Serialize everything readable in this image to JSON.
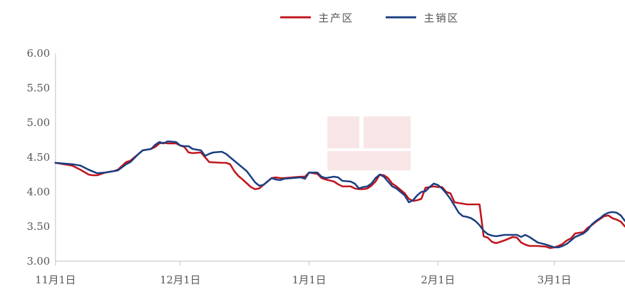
{
  "chart_data": {
    "type": "line",
    "title": "",
    "xlabel": "",
    "ylabel": "",
    "ylim": [
      3.0,
      6.0
    ],
    "y_ticks": [
      "3.00",
      "3.50",
      "4.00",
      "4.50",
      "5.00",
      "5.50",
      "6.00"
    ],
    "y_tick_values": [
      3.0,
      3.5,
      4.0,
      4.5,
      5.0,
      5.5,
      6.0
    ],
    "x_ticks": [
      "11月1日",
      "12月1日",
      "1月1日",
      "2月1日",
      "3月1日"
    ],
    "x_tick_days": [
      0,
      30,
      61,
      92,
      120
    ],
    "x_range_days": [
      0,
      137
    ],
    "x_day_origin_label": "11月1日",
    "grid": false,
    "legend_position": "top-center",
    "series": [
      {
        "name": "主产区",
        "color": "#c0141c",
        "x": [
          0,
          4,
          6,
          8,
          9,
          10,
          12,
          14,
          15,
          17,
          18,
          20,
          21,
          23,
          24,
          25,
          26,
          27,
          29,
          30,
          31,
          32,
          33,
          35,
          36,
          37,
          40,
          41,
          42,
          43,
          44,
          45,
          47,
          48,
          49,
          50,
          51,
          52,
          53,
          54,
          55,
          57,
          59,
          60,
          61,
          62,
          63,
          64,
          65,
          67,
          68,
          69,
          71,
          72,
          73,
          74,
          75,
          76,
          77,
          78,
          79,
          80,
          81,
          82,
          84,
          85,
          86,
          87,
          88,
          89,
          90,
          91,
          92,
          93,
          94,
          95,
          96,
          99,
          100,
          102,
          103,
          104,
          105,
          106,
          107,
          108,
          110,
          111,
          112,
          113,
          114,
          116,
          118,
          119,
          120,
          121,
          122,
          123,
          124,
          125,
          127,
          128,
          129,
          130,
          131,
          132,
          133,
          134,
          135,
          136,
          137
        ],
        "values": [
          4.42,
          4.38,
          4.32,
          4.25,
          4.24,
          4.24,
          4.28,
          4.3,
          4.32,
          4.43,
          4.45,
          4.55,
          4.6,
          4.62,
          4.65,
          4.7,
          4.71,
          4.7,
          4.7,
          4.67,
          4.65,
          4.57,
          4.56,
          4.57,
          4.5,
          4.43,
          4.42,
          4.42,
          4.4,
          4.3,
          4.23,
          4.18,
          4.07,
          4.04,
          4.05,
          4.1,
          4.15,
          4.2,
          4.21,
          4.2,
          4.2,
          4.21,
          4.22,
          4.22,
          4.28,
          4.27,
          4.26,
          4.2,
          4.18,
          4.15,
          4.11,
          4.08,
          4.08,
          4.05,
          4.04,
          4.04,
          4.05,
          4.09,
          4.15,
          4.25,
          4.24,
          4.2,
          4.12,
          4.08,
          3.98,
          3.9,
          3.87,
          3.88,
          3.9,
          4.06,
          4.07,
          4.08,
          4.07,
          4.07,
          4.0,
          3.98,
          3.85,
          3.82,
          3.82,
          3.82,
          3.36,
          3.34,
          3.28,
          3.26,
          3.28,
          3.3,
          3.35,
          3.34,
          3.27,
          3.24,
          3.22,
          3.22,
          3.21,
          3.19,
          3.2,
          3.22,
          3.25,
          3.3,
          3.33,
          3.4,
          3.42,
          3.48,
          3.52,
          3.57,
          3.61,
          3.65,
          3.66,
          3.62,
          3.6,
          3.57,
          3.5
        ]
      },
      {
        "name": "主销区",
        "color": "#1c3f82",
        "x": [
          0,
          4,
          6,
          8,
          10,
          12,
          14,
          15,
          17,
          18,
          20,
          21,
          23,
          24,
          25,
          26,
          27,
          29,
          30,
          31,
          32,
          33,
          35,
          36,
          37,
          38,
          40,
          41,
          42,
          43,
          44,
          45,
          46,
          47,
          48,
          49,
          50,
          51,
          52,
          53,
          54,
          55,
          57,
          59,
          60,
          61,
          62,
          63,
          64,
          65,
          67,
          68,
          69,
          71,
          72,
          73,
          74,
          75,
          76,
          77,
          78,
          79,
          80,
          81,
          82,
          84,
          85,
          86,
          87,
          88,
          89,
          90,
          91,
          92,
          93,
          94,
          95,
          96,
          97,
          98,
          99,
          100,
          101,
          102,
          103,
          104,
          105,
          106,
          108,
          110,
          111,
          112,
          113,
          114,
          116,
          118,
          119,
          120,
          121,
          122,
          123,
          124,
          125,
          127,
          128,
          129,
          130,
          131,
          132,
          133,
          134,
          135,
          136,
          137
        ],
        "values": [
          4.42,
          4.4,
          4.38,
          4.32,
          4.27,
          4.28,
          4.3,
          4.31,
          4.4,
          4.43,
          4.55,
          4.6,
          4.62,
          4.68,
          4.72,
          4.7,
          4.73,
          4.72,
          4.67,
          4.66,
          4.66,
          4.62,
          4.6,
          4.52,
          4.55,
          4.57,
          4.58,
          4.55,
          4.5,
          4.45,
          4.4,
          4.35,
          4.3,
          4.22,
          4.14,
          4.09,
          4.1,
          4.15,
          4.2,
          4.18,
          4.17,
          4.19,
          4.2,
          4.21,
          4.19,
          4.28,
          4.28,
          4.28,
          4.22,
          4.2,
          4.22,
          4.21,
          4.16,
          4.15,
          4.12,
          4.05,
          4.07,
          4.08,
          4.12,
          4.2,
          4.25,
          4.22,
          4.15,
          4.08,
          4.05,
          3.95,
          3.85,
          3.88,
          3.95,
          4.0,
          4.01,
          4.07,
          4.12,
          4.1,
          4.05,
          3.98,
          3.9,
          3.8,
          3.7,
          3.65,
          3.64,
          3.62,
          3.58,
          3.52,
          3.44,
          3.39,
          3.37,
          3.36,
          3.38,
          3.38,
          3.38,
          3.35,
          3.38,
          3.35,
          3.27,
          3.24,
          3.22,
          3.2,
          3.2,
          3.22,
          3.25,
          3.3,
          3.35,
          3.4,
          3.45,
          3.53,
          3.58,
          3.62,
          3.67,
          3.7,
          3.71,
          3.7,
          3.66,
          3.58
        ]
      }
    ]
  }
}
